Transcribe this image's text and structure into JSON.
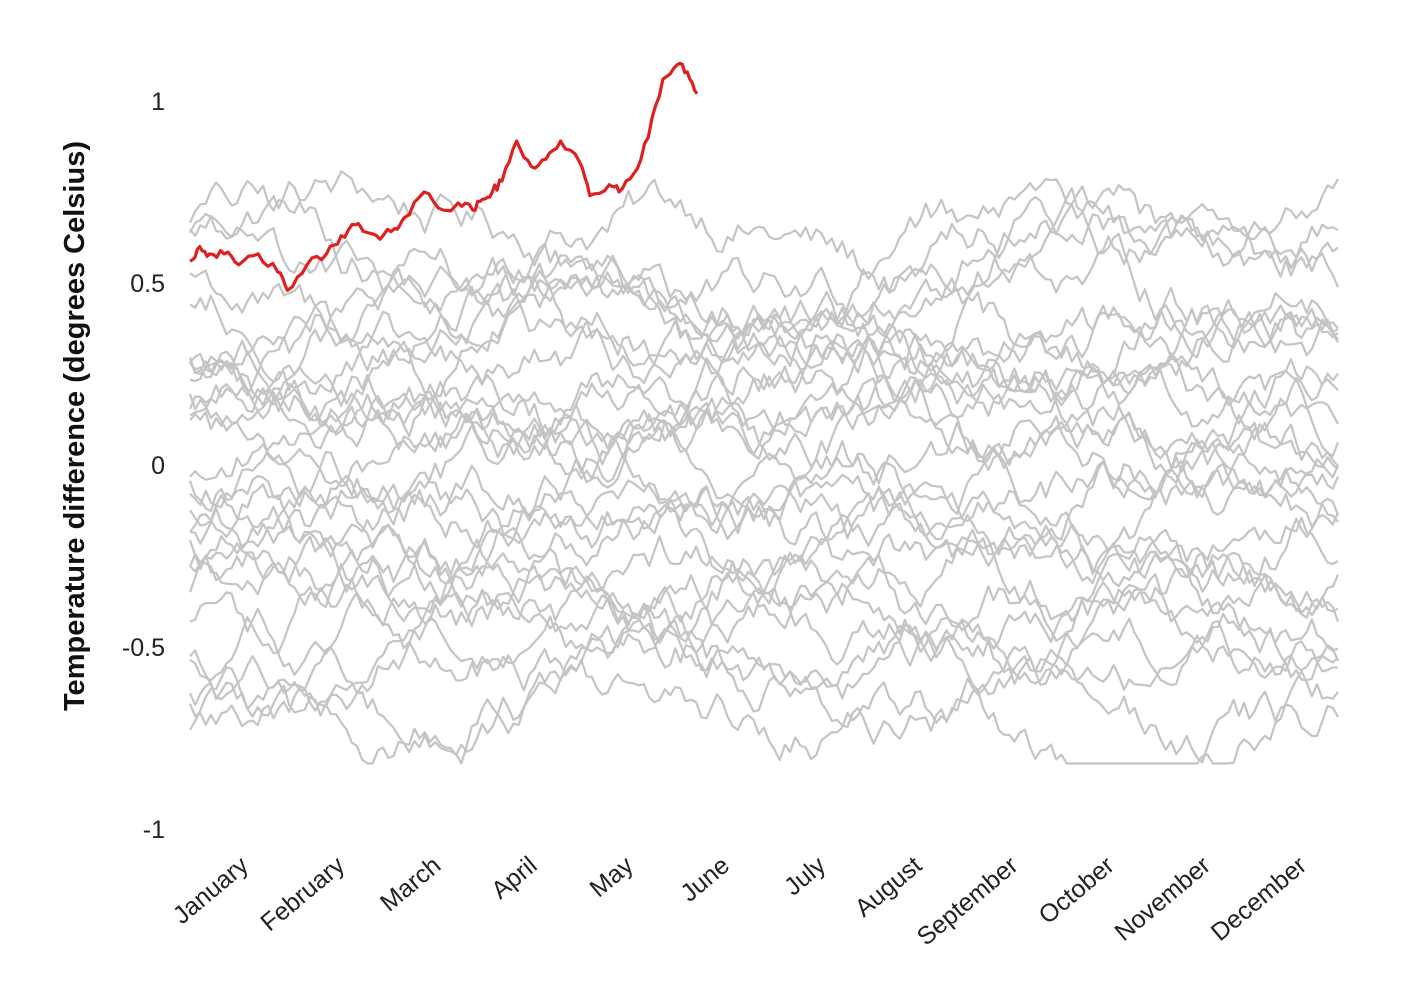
{
  "chart_data": {
    "type": "line",
    "title": "",
    "xlabel": "",
    "ylabel": "Temperature difference (degrees Celsius)",
    "ylim": [
      -1,
      1
    ],
    "yticks": [
      {
        "value": 1,
        "label": "1"
      },
      {
        "value": 0.5,
        "label": "0.5"
      },
      {
        "value": 0,
        "label": "0"
      },
      {
        "value": -0.5,
        "label": "-0.5"
      },
      {
        "value": -1,
        "label": "-1"
      }
    ],
    "categories": [
      "January",
      "February",
      "March",
      "April",
      "May",
      "June",
      "July",
      "August",
      "September",
      "October",
      "November",
      "December"
    ],
    "highlight_color": "#e02020",
    "background_color": "#c4c4c4",
    "highlight_series": {
      "x": [
        0.0,
        0.1,
        0.2,
        0.35,
        0.5,
        0.7,
        0.9,
        1.0,
        1.2,
        1.4,
        1.55,
        1.7,
        1.8,
        1.95,
        2.1,
        2.2,
        2.4,
        2.6,
        2.75,
        2.9,
        3.0,
        3.1,
        3.2,
        3.35,
        3.5,
        3.65,
        3.8,
        4.0,
        4.1,
        4.3,
        4.4,
        4.55,
        4.7,
        4.85,
        5.0,
        5.1,
        5.2
      ],
      "values": [
        0.56,
        0.6,
        0.58,
        0.58,
        0.55,
        0.58,
        0.53,
        0.48,
        0.55,
        0.58,
        0.63,
        0.66,
        0.64,
        0.62,
        0.65,
        0.68,
        0.75,
        0.7,
        0.72,
        0.7,
        0.73,
        0.75,
        0.78,
        0.89,
        0.82,
        0.84,
        0.89,
        0.83,
        0.74,
        0.77,
        0.75,
        0.8,
        0.9,
        1.06,
        1.1,
        1.08,
        1.02
      ]
    },
    "background_series": [
      {
        "start": 0.63,
        "end": 0.6
      },
      {
        "start": 0.55,
        "end": 0.52
      },
      {
        "start": 0.5,
        "end": 0.42
      },
      {
        "start": 0.35,
        "end": 0.3
      },
      {
        "start": 0.3,
        "end": 0.33
      },
      {
        "start": 0.25,
        "end": 0.2
      },
      {
        "start": 0.2,
        "end": 0.24
      },
      {
        "start": 0.17,
        "end": 0.15
      },
      {
        "start": 0.12,
        "end": 0.1
      },
      {
        "start": 0.09,
        "end": 0.05
      },
      {
        "start": 0.05,
        "end": 0.0
      },
      {
        "start": 0.0,
        "end": -0.02
      },
      {
        "start": -0.08,
        "end": -0.1
      },
      {
        "start": -0.15,
        "end": -0.12
      },
      {
        "start": -0.2,
        "end": -0.22
      },
      {
        "start": -0.25,
        "end": -0.2
      },
      {
        "start": -0.3,
        "end": -0.33
      },
      {
        "start": -0.38,
        "end": -0.35
      },
      {
        "start": -0.42,
        "end": -0.4
      },
      {
        "start": -0.47,
        "end": -0.55
      },
      {
        "start": -0.52,
        "end": -0.58
      },
      {
        "start": -0.6,
        "end": -0.62
      },
      {
        "start": -0.66,
        "end": -0.7
      },
      {
        "start": 0.4,
        "end": 0.35
      },
      {
        "start": 0.22,
        "end": 0.28
      },
      {
        "start": -0.05,
        "end": 0.02
      },
      {
        "start": -0.35,
        "end": -0.3
      },
      {
        "start": 0.45,
        "end": 0.55
      },
      {
        "start": 0.28,
        "end": 0.62
      },
      {
        "start": -0.55,
        "end": -0.45
      }
    ]
  }
}
